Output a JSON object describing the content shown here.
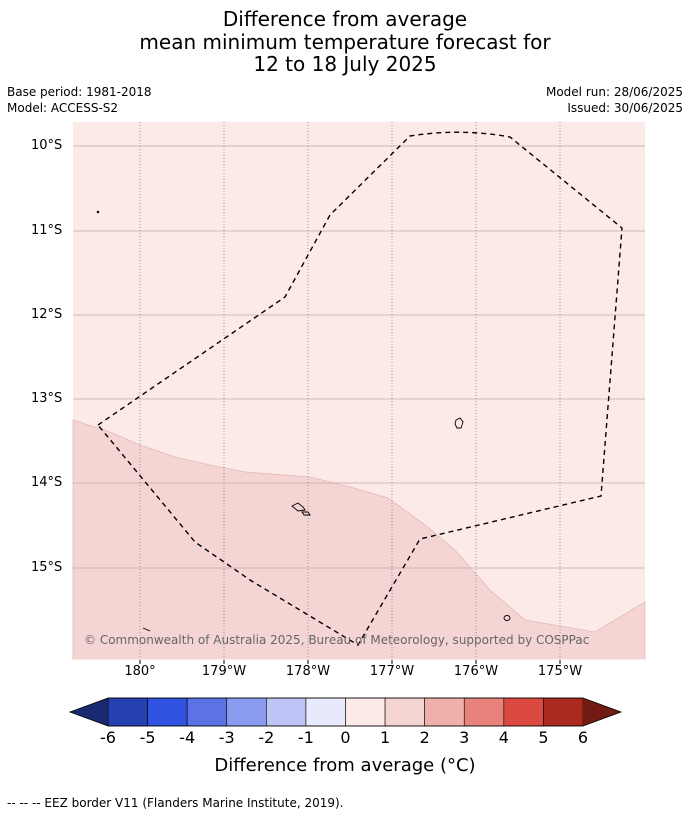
{
  "title": {
    "line1": "Difference from average",
    "line2": "mean minimum temperature forecast for",
    "line3": "12 to 18 July 2025"
  },
  "meta": {
    "base_period": "Base period: 1981-2018",
    "model": "Model: ACCESS-S2",
    "model_run": "Model run: 28/06/2025",
    "issued": "Issued: 30/06/2025"
  },
  "map": {
    "latitude_labels": [
      "10°S",
      "11°S",
      "12°S",
      "13°S",
      "14°S",
      "15°S"
    ],
    "longitude_labels": [
      "180°",
      "179°W",
      "178°W",
      "177°W",
      "176°W",
      "175°W"
    ],
    "fill_colors": {
      "category_0_to_1": "#fbeae8",
      "category_1_to_2": "#f5d5d3"
    },
    "eez_border_style": "dashed",
    "copyright": "© Commonwealth of Australia 2025, Bureau of Meteorology, supported by COSPPac"
  },
  "colorbar": {
    "ticks": [
      "-6",
      "-5",
      "-4",
      "-3",
      "-2",
      "-1",
      "0",
      "1",
      "2",
      "3",
      "4",
      "5",
      "6"
    ],
    "colors": [
      "#1a2a70",
      "#2540b0",
      "#2f53e0",
      "#5b73e5",
      "#8b9cf0",
      "#bec5f6",
      "#e7e9fc",
      "#fbeae8",
      "#f5d5d3",
      "#eeb0ab",
      "#e9827a",
      "#db4a40",
      "#ab2a20",
      "#721a14"
    ],
    "label": "Difference from average (°C)"
  },
  "footnote": "--  --  -- EEZ border V11 (Flanders Marine Institute, 2019)."
}
